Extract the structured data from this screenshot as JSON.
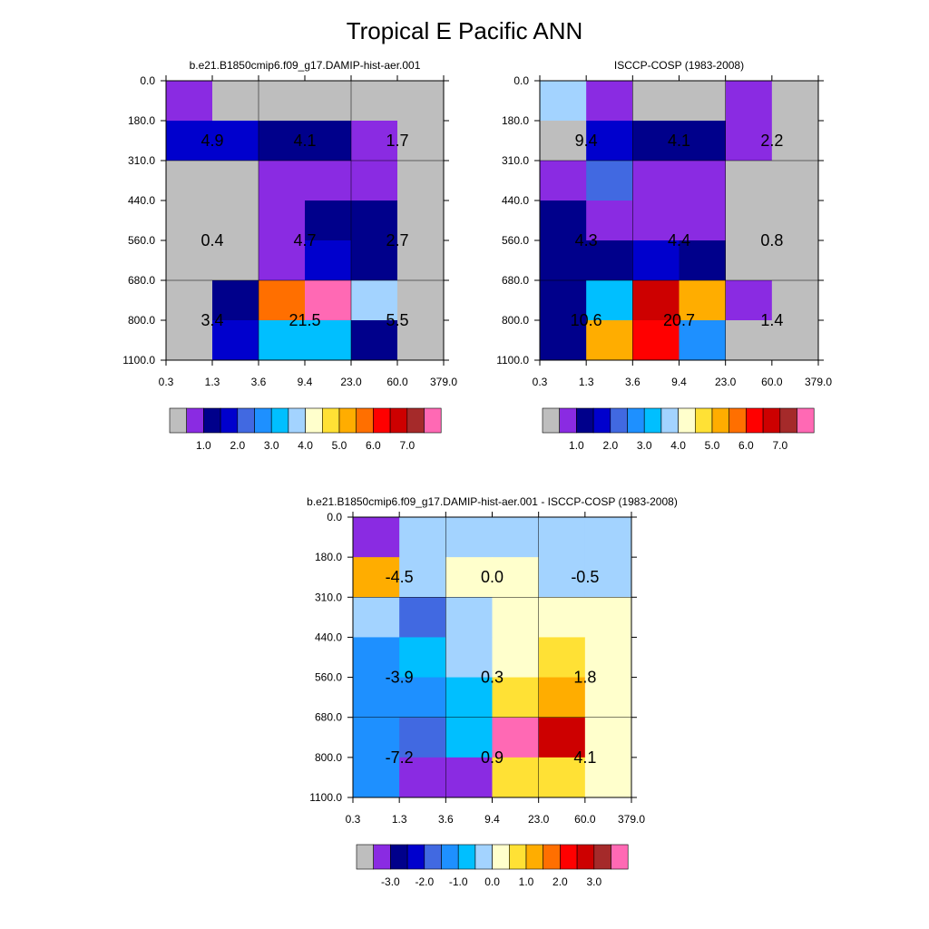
{
  "title": "Tropical E Pacific ANN",
  "colormap": [
    "#bebebe",
    "#8a2be2",
    "#00008b",
    "#0000cd",
    "#4169e1",
    "#1e90ff",
    "#00bfff",
    "#a3d3ff",
    "#ffffcc",
    "#ffe135",
    "#ffad00",
    "#ff6f00",
    "#ff0000",
    "#cd0000",
    "#a52a2a",
    "#ff69b4"
  ],
  "x_ticks": [
    "0.3",
    "1.3",
    "3.6",
    "9.4",
    "23.0",
    "60.0",
    "379.0"
  ],
  "y_ticks": [
    "0.0",
    "180.0",
    "310.0",
    "440.0",
    "560.0",
    "680.0",
    "800.0",
    "1100.0"
  ],
  "chart_data": [
    {
      "type": "heatmap",
      "title": "b.e21.B1850cmip6.f09_g17.DAMIP-hist-aer.001",
      "xlabel": "",
      "ylabel": "",
      "grid": true,
      "colorbar_labels": [
        "1.0",
        "2.0",
        "3.0",
        "4.0",
        "5.0",
        "6.0",
        "7.0"
      ],
      "cells": [
        [
          1,
          0,
          0,
          0,
          0,
          0
        ],
        [
          3,
          3,
          2,
          2,
          1,
          0
        ],
        [
          0,
          0,
          1,
          1,
          1,
          0
        ],
        [
          0,
          0,
          1,
          2,
          2,
          0
        ],
        [
          0,
          0,
          1,
          3,
          2,
          0
        ],
        [
          0,
          2,
          11,
          15,
          7,
          0
        ],
        [
          0,
          3,
          6,
          6,
          2,
          0
        ]
      ],
      "labels": [
        {
          "row": 1,
          "col": 0.5,
          "text": "4.9"
        },
        {
          "row": 1,
          "col": 2.5,
          "text": "4.1"
        },
        {
          "row": 1,
          "col": 4.5,
          "text": "1.7"
        },
        {
          "row": 3.5,
          "col": 0.5,
          "text": "0.4"
        },
        {
          "row": 3.5,
          "col": 2.5,
          "text": "4.7"
        },
        {
          "row": 3.5,
          "col": 4.5,
          "text": "2.7"
        },
        {
          "row": 5.5,
          "col": 0.5,
          "text": "3.4"
        },
        {
          "row": 5.5,
          "col": 2.5,
          "text": "21.5"
        },
        {
          "row": 5.5,
          "col": 4.5,
          "text": "5.5"
        }
      ]
    },
    {
      "type": "heatmap",
      "title": "ISCCP-COSP (1983-2008)",
      "xlabel": "",
      "ylabel": "",
      "grid": true,
      "colorbar_labels": [
        "1.0",
        "2.0",
        "3.0",
        "4.0",
        "5.0",
        "6.0",
        "7.0"
      ],
      "cells": [
        [
          7,
          1,
          0,
          0,
          1,
          0
        ],
        [
          0,
          3,
          2,
          2,
          1,
          0
        ],
        [
          1,
          4,
          1,
          1,
          0,
          0
        ],
        [
          2,
          1,
          1,
          1,
          0,
          0
        ],
        [
          2,
          2,
          3,
          2,
          0,
          0
        ],
        [
          2,
          6,
          13,
          10,
          1,
          0
        ],
        [
          2,
          10,
          12,
          5,
          0,
          0
        ]
      ],
      "labels": [
        {
          "row": 1,
          "col": 0.5,
          "text": "9.4"
        },
        {
          "row": 1,
          "col": 2.5,
          "text": "4.1"
        },
        {
          "row": 1,
          "col": 4.5,
          "text": "2.2"
        },
        {
          "row": 3.5,
          "col": 0.5,
          "text": "4.3"
        },
        {
          "row": 3.5,
          "col": 2.5,
          "text": "4.4"
        },
        {
          "row": 3.5,
          "col": 4.5,
          "text": "0.8"
        },
        {
          "row": 5.5,
          "col": 0.5,
          "text": "10.6"
        },
        {
          "row": 5.5,
          "col": 2.5,
          "text": "20.7"
        },
        {
          "row": 5.5,
          "col": 4.5,
          "text": "1.4"
        }
      ]
    },
    {
      "type": "heatmap",
      "title": "b.e21.B1850cmip6.f09_g17.DAMIP-hist-aer.001 - ISCCP-COSP (1983-2008)",
      "xlabel": "",
      "ylabel": "",
      "grid": true,
      "colorbar_labels": [
        "-3.0",
        "-2.0",
        "-1.0",
        "0.0",
        "1.0",
        "2.0",
        "3.0"
      ],
      "cells": [
        [
          1,
          7,
          7,
          7,
          7,
          7
        ],
        [
          10,
          7,
          8,
          8,
          7,
          7
        ],
        [
          7,
          4,
          7,
          8,
          8,
          8
        ],
        [
          5,
          6,
          7,
          8,
          9,
          8
        ],
        [
          5,
          5,
          6,
          9,
          10,
          8
        ],
        [
          5,
          4,
          6,
          15,
          13,
          8
        ],
        [
          5,
          1,
          1,
          9,
          9,
          8
        ]
      ],
      "labels": [
        {
          "row": 1,
          "col": 0.5,
          "text": "-4.5"
        },
        {
          "row": 1,
          "col": 2.5,
          "text": "0.0"
        },
        {
          "row": 1,
          "col": 4.5,
          "text": "-0.5"
        },
        {
          "row": 3.5,
          "col": 0.5,
          "text": "-3.9"
        },
        {
          "row": 3.5,
          "col": 2.5,
          "text": "0.3"
        },
        {
          "row": 3.5,
          "col": 4.5,
          "text": "1.8"
        },
        {
          "row": 5.5,
          "col": 0.5,
          "text": "-7.2"
        },
        {
          "row": 5.5,
          "col": 2.5,
          "text": "0.9"
        },
        {
          "row": 5.5,
          "col": 4.5,
          "text": "4.1"
        }
      ]
    }
  ]
}
